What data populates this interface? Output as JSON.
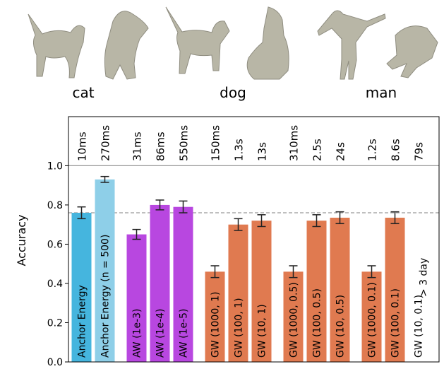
{
  "shapes": {
    "labels": [
      "cat",
      "dog",
      "man"
    ]
  },
  "chart_data": {
    "type": "bar",
    "ylabel": "Accuracy",
    "categories": [
      "Anchor Energy",
      "Anchor Energy (n = 500)",
      null,
      "AW (1e-3)",
      "AW (1e-4)",
      "AW (1e-5)",
      null,
      "GW (1000, 1)",
      "GW (100, 1)",
      "GW (10, 1)",
      null,
      "GW (1000, 0.5)",
      "GW (100, 0.5)",
      "GW (10, 0.5)",
      null,
      "GW (1000, 0.1)",
      "GW (100, 0.1)",
      "GW (10, 0.1)"
    ],
    "values": [
      0.76,
      0.93,
      null,
      0.65,
      0.8,
      0.79,
      null,
      0.46,
      0.7,
      0.72,
      null,
      0.46,
      0.72,
      0.735,
      null,
      0.46,
      0.735,
      null
    ],
    "errors": [
      0.03,
      0.015,
      null,
      0.025,
      0.025,
      0.03,
      null,
      0.03,
      0.03,
      0.03,
      null,
      0.03,
      0.03,
      0.03,
      null,
      0.03,
      0.03,
      null
    ],
    "colors": [
      "#45b5de",
      "#8ecfe8",
      null,
      "#b847e0",
      "#b847e0",
      "#b847e0",
      null,
      "#e07a50",
      "#e07a50",
      "#e07a50",
      null,
      "#e07a50",
      "#e07a50",
      "#e07a50",
      null,
      "#e07a50",
      "#e07a50",
      "#e07a50"
    ],
    "time_labels": [
      "10ms",
      "270ms",
      null,
      "31ms",
      "86ms",
      "550ms",
      null,
      "150ms",
      "1.3s",
      "13s",
      null,
      "310ms",
      "2.5s",
      "24s",
      null,
      "1.2s",
      "8.6s",
      "79s"
    ],
    "no_data_label": "> 3 day",
    "ylim": [
      0,
      1.25
    ],
    "yticks": [
      {
        "value": 0,
        "label": "0.0"
      },
      0.2,
      0.4,
      0.6,
      0.8,
      {
        "value": 1,
        "label": "1.0"
      }
    ],
    "hlines": [
      {
        "value": 1,
        "style": "solid"
      },
      {
        "value": 0.76,
        "style": "dashed"
      }
    ]
  }
}
